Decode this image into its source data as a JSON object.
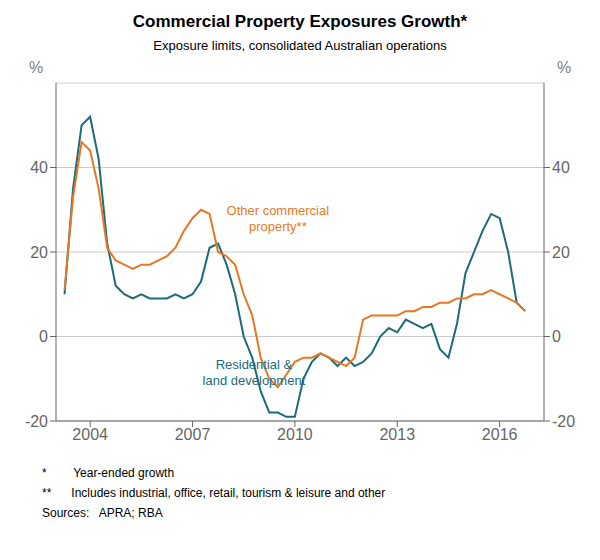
{
  "chart_data": {
    "type": "line",
    "title": "Commercial Property Exposures Growth*",
    "subtitle": "Exposure limits, consolidated Australian operations",
    "ylabel": "%",
    "y2label": "%",
    "x": [
      2003.25,
      2003.5,
      2003.75,
      2004.0,
      2004.25,
      2004.5,
      2004.75,
      2005.0,
      2005.25,
      2005.5,
      2005.75,
      2006.0,
      2006.25,
      2006.5,
      2006.75,
      2007.0,
      2007.25,
      2007.5,
      2007.75,
      2008.0,
      2008.25,
      2008.5,
      2008.75,
      2009.0,
      2009.25,
      2009.5,
      2009.75,
      2010.0,
      2010.25,
      2010.5,
      2010.75,
      2011.0,
      2011.25,
      2011.5,
      2011.75,
      2012.0,
      2012.25,
      2012.5,
      2012.75,
      2013.0,
      2013.25,
      2013.5,
      2013.75,
      2014.0,
      2014.25,
      2014.5,
      2014.75,
      2015.0,
      2015.25,
      2015.5,
      2015.75,
      2016.0,
      2016.25,
      2016.5,
      2016.75
    ],
    "series": [
      {
        "name": "Residential &\nland development",
        "color": "#1B6B7B",
        "values": [
          10,
          35,
          50,
          52,
          42,
          22,
          12,
          10,
          9,
          10,
          9,
          9,
          9,
          10,
          9,
          10,
          13,
          21,
          22,
          17,
          10,
          0,
          -5,
          -13,
          -18,
          -18,
          -19,
          -19,
          -10,
          -6,
          -4,
          -5,
          -7,
          -5,
          -7,
          -6,
          -4,
          0,
          2,
          1,
          4,
          3,
          2,
          3,
          -3,
          -5,
          3,
          15,
          20,
          25,
          29,
          28,
          20,
          8,
          6
        ]
      },
      {
        "name": "Other commercial\nproperty**",
        "color": "#E87722",
        "values": [
          11,
          33,
          46,
          44,
          35,
          21,
          18,
          17,
          16,
          17,
          17,
          18,
          19,
          21,
          25,
          28,
          30,
          29,
          20,
          19,
          17,
          10,
          5,
          -5,
          -10,
          -12,
          -9,
          -6,
          -5,
          -5,
          -4,
          -5,
          -6,
          -7,
          -5,
          4,
          5,
          5,
          5,
          5,
          6,
          6,
          7,
          7,
          8,
          8,
          9,
          9,
          10,
          10,
          11,
          10,
          9,
          8,
          6
        ]
      }
    ],
    "annotations": [
      {
        "text": "Other commercial\nproperty**",
        "x": 2009.5,
        "y": 28,
        "color": "#E87722"
      },
      {
        "text": "Residential &\nland development",
        "x": 2008.8,
        "y": -8.5,
        "color": "#1B6B7B"
      }
    ],
    "xlim": [
      2003.0,
      2017.3
    ],
    "xticks": [
      2004,
      2007,
      2010,
      2013,
      2016
    ],
    "ylim": [
      -20,
      60
    ],
    "yticks": [
      -20,
      0,
      20,
      40
    ],
    "y2lim": [
      -20,
      60
    ],
    "y2ticks": [
      -20,
      0,
      20,
      40
    ],
    "grid": true,
    "footnotes": [
      "*        Year-ended growth",
      "**      Includes industrial, office, retail, tourism & leisure and other",
      "Sources:   APRA; RBA"
    ]
  }
}
